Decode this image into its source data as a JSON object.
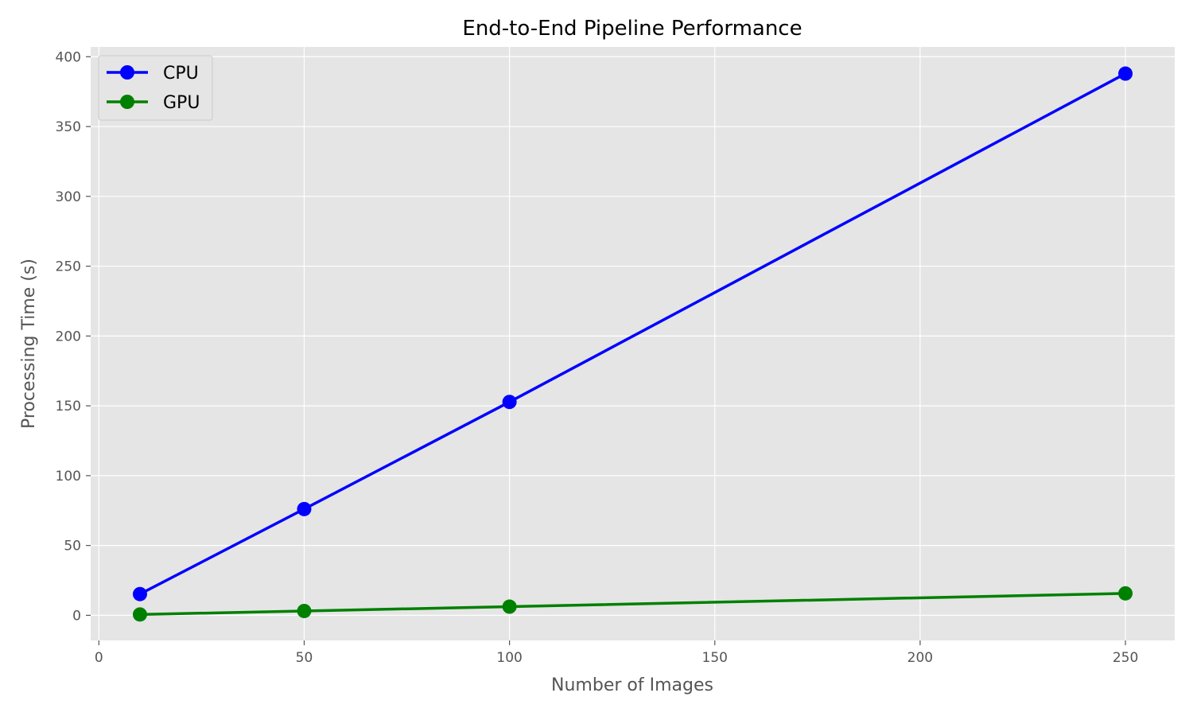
{
  "chart_data": {
    "type": "line",
    "title": "End-to-End Pipeline Performance",
    "xlabel": "Number of Images",
    "ylabel": "Processing Time (s)",
    "xlim": [
      -2,
      262
    ],
    "ylim": [
      -18,
      407
    ],
    "xticks": [
      0,
      50,
      100,
      150,
      200,
      250
    ],
    "yticks": [
      0,
      50,
      100,
      150,
      200,
      250,
      300,
      350,
      400
    ],
    "grid": true,
    "legend_position": "top-left",
    "x": [
      10,
      50,
      100,
      250
    ],
    "series": [
      {
        "name": "CPU",
        "color": "#0000ff",
        "marker": "circle",
        "values": [
          15.2,
          76.1,
          152.8,
          387.9
        ]
      },
      {
        "name": "GPU",
        "color": "#008000",
        "marker": "circle",
        "values": [
          0.6,
          3.1,
          6.2,
          15.7
        ]
      }
    ],
    "colors": {
      "plot_background": "#e5e5e5",
      "grid": "#ffffff",
      "frame": "#ffffff"
    }
  }
}
